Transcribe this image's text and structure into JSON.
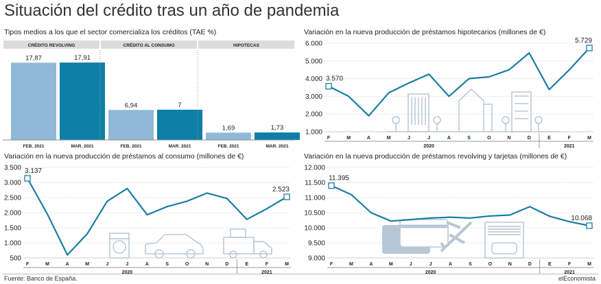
{
  "title": "Situación del crédito tras un año de pandemia",
  "footer": {
    "source": "Fuente: Banco de España.",
    "brand": "elEconomista"
  },
  "colors": {
    "light": "#8fb9d6",
    "dark": "#0e7fa6",
    "line": "#1a7ca3",
    "header": "#dcdcdc",
    "grid": "#cfcfcf",
    "illus": "#b7c7d6"
  },
  "illustrations": {
    "mortgage": [
      "tree-icon",
      "building-icon",
      "house-icon"
    ],
    "consumer": [
      "washing-machine-icon",
      "car-icon",
      "truck-icon"
    ],
    "revolving": [
      "credit-card-icon",
      "airplane-icon",
      "garage-car-icon"
    ]
  },
  "chart_data": [
    {
      "id": "tae",
      "type": "bar",
      "title": "Tipos medios a los que el sector comercializa los créditos (TAE %)",
      "groups": [
        "CRÉDITO REVOLVING",
        "CRÉDITO AL CONSUMO",
        "HIPOTECAS"
      ],
      "categories": [
        "FEB. 2021",
        "MAR. 2021"
      ],
      "values": [
        [
          17.87,
          17.91
        ],
        [
          6.94,
          7
        ],
        [
          1.69,
          1.73
        ]
      ],
      "labels": [
        [
          "17,87",
          "17,91"
        ],
        [
          "6,94",
          "7"
        ],
        [
          "1,69",
          "1,73"
        ]
      ],
      "ylim": [
        0,
        20
      ]
    },
    {
      "id": "mortgage",
      "type": "line",
      "title": "Variación en la nueva producción de préstamos hipotecarios (millones de €)",
      "months": [
        "F",
        "M",
        "A",
        "M",
        "J",
        "J",
        "A",
        "S",
        "O",
        "N",
        "D",
        "E",
        "F",
        "M"
      ],
      "years": [
        "2020",
        "2021"
      ],
      "values": [
        3570,
        3000,
        1900,
        3200,
        3750,
        4250,
        3000,
        4000,
        4100,
        4500,
        5450,
        3380,
        4500,
        5729
      ],
      "ylim": [
        1000,
        6000
      ],
      "yticks": [
        "1.000",
        "2.000",
        "3.000",
        "4.000",
        "5.000",
        "6.000"
      ],
      "first_label": "3.570",
      "last_label": "5.729"
    },
    {
      "id": "consumer",
      "type": "line",
      "title": "Variación en la nueva producción de préstamos al consumo (millones de €)",
      "months": [
        "F",
        "M",
        "A",
        "M",
        "J",
        "J",
        "A",
        "S",
        "O",
        "N",
        "D",
        "E",
        "F",
        "M"
      ],
      "years": [
        "2020",
        "2021"
      ],
      "values": [
        3137,
        1950,
        600,
        1300,
        2380,
        2800,
        1930,
        2200,
        2380,
        2650,
        2470,
        1780,
        2130,
        2523
      ],
      "ylim": [
        500,
        3500
      ],
      "yticks": [
        "500",
        "1.000",
        "1.500",
        "2.000",
        "2.500",
        "3.000",
        "3.500"
      ],
      "first_label": "3.137",
      "last_label": "2.523"
    },
    {
      "id": "revolving",
      "type": "line",
      "title": "Variación en la nueva producción de préstamos revolving y tarjetas (millones de €)",
      "months": [
        "F",
        "M",
        "A",
        "M",
        "J",
        "J",
        "A",
        "S",
        "O",
        "N",
        "D",
        "E",
        "F",
        "M"
      ],
      "years": [
        "2020",
        "2021"
      ],
      "values": [
        11395,
        11100,
        10500,
        10220,
        10270,
        10320,
        10350,
        10320,
        10390,
        10420,
        10700,
        10380,
        10200,
        10068
      ],
      "ylim": [
        9000,
        12000
      ],
      "yticks": [
        "9.000",
        "9.500",
        "10.000",
        "10.500",
        "11.000",
        "11.500",
        "12.000"
      ],
      "first_label": "11.395",
      "last_label": "10.068"
    }
  ]
}
